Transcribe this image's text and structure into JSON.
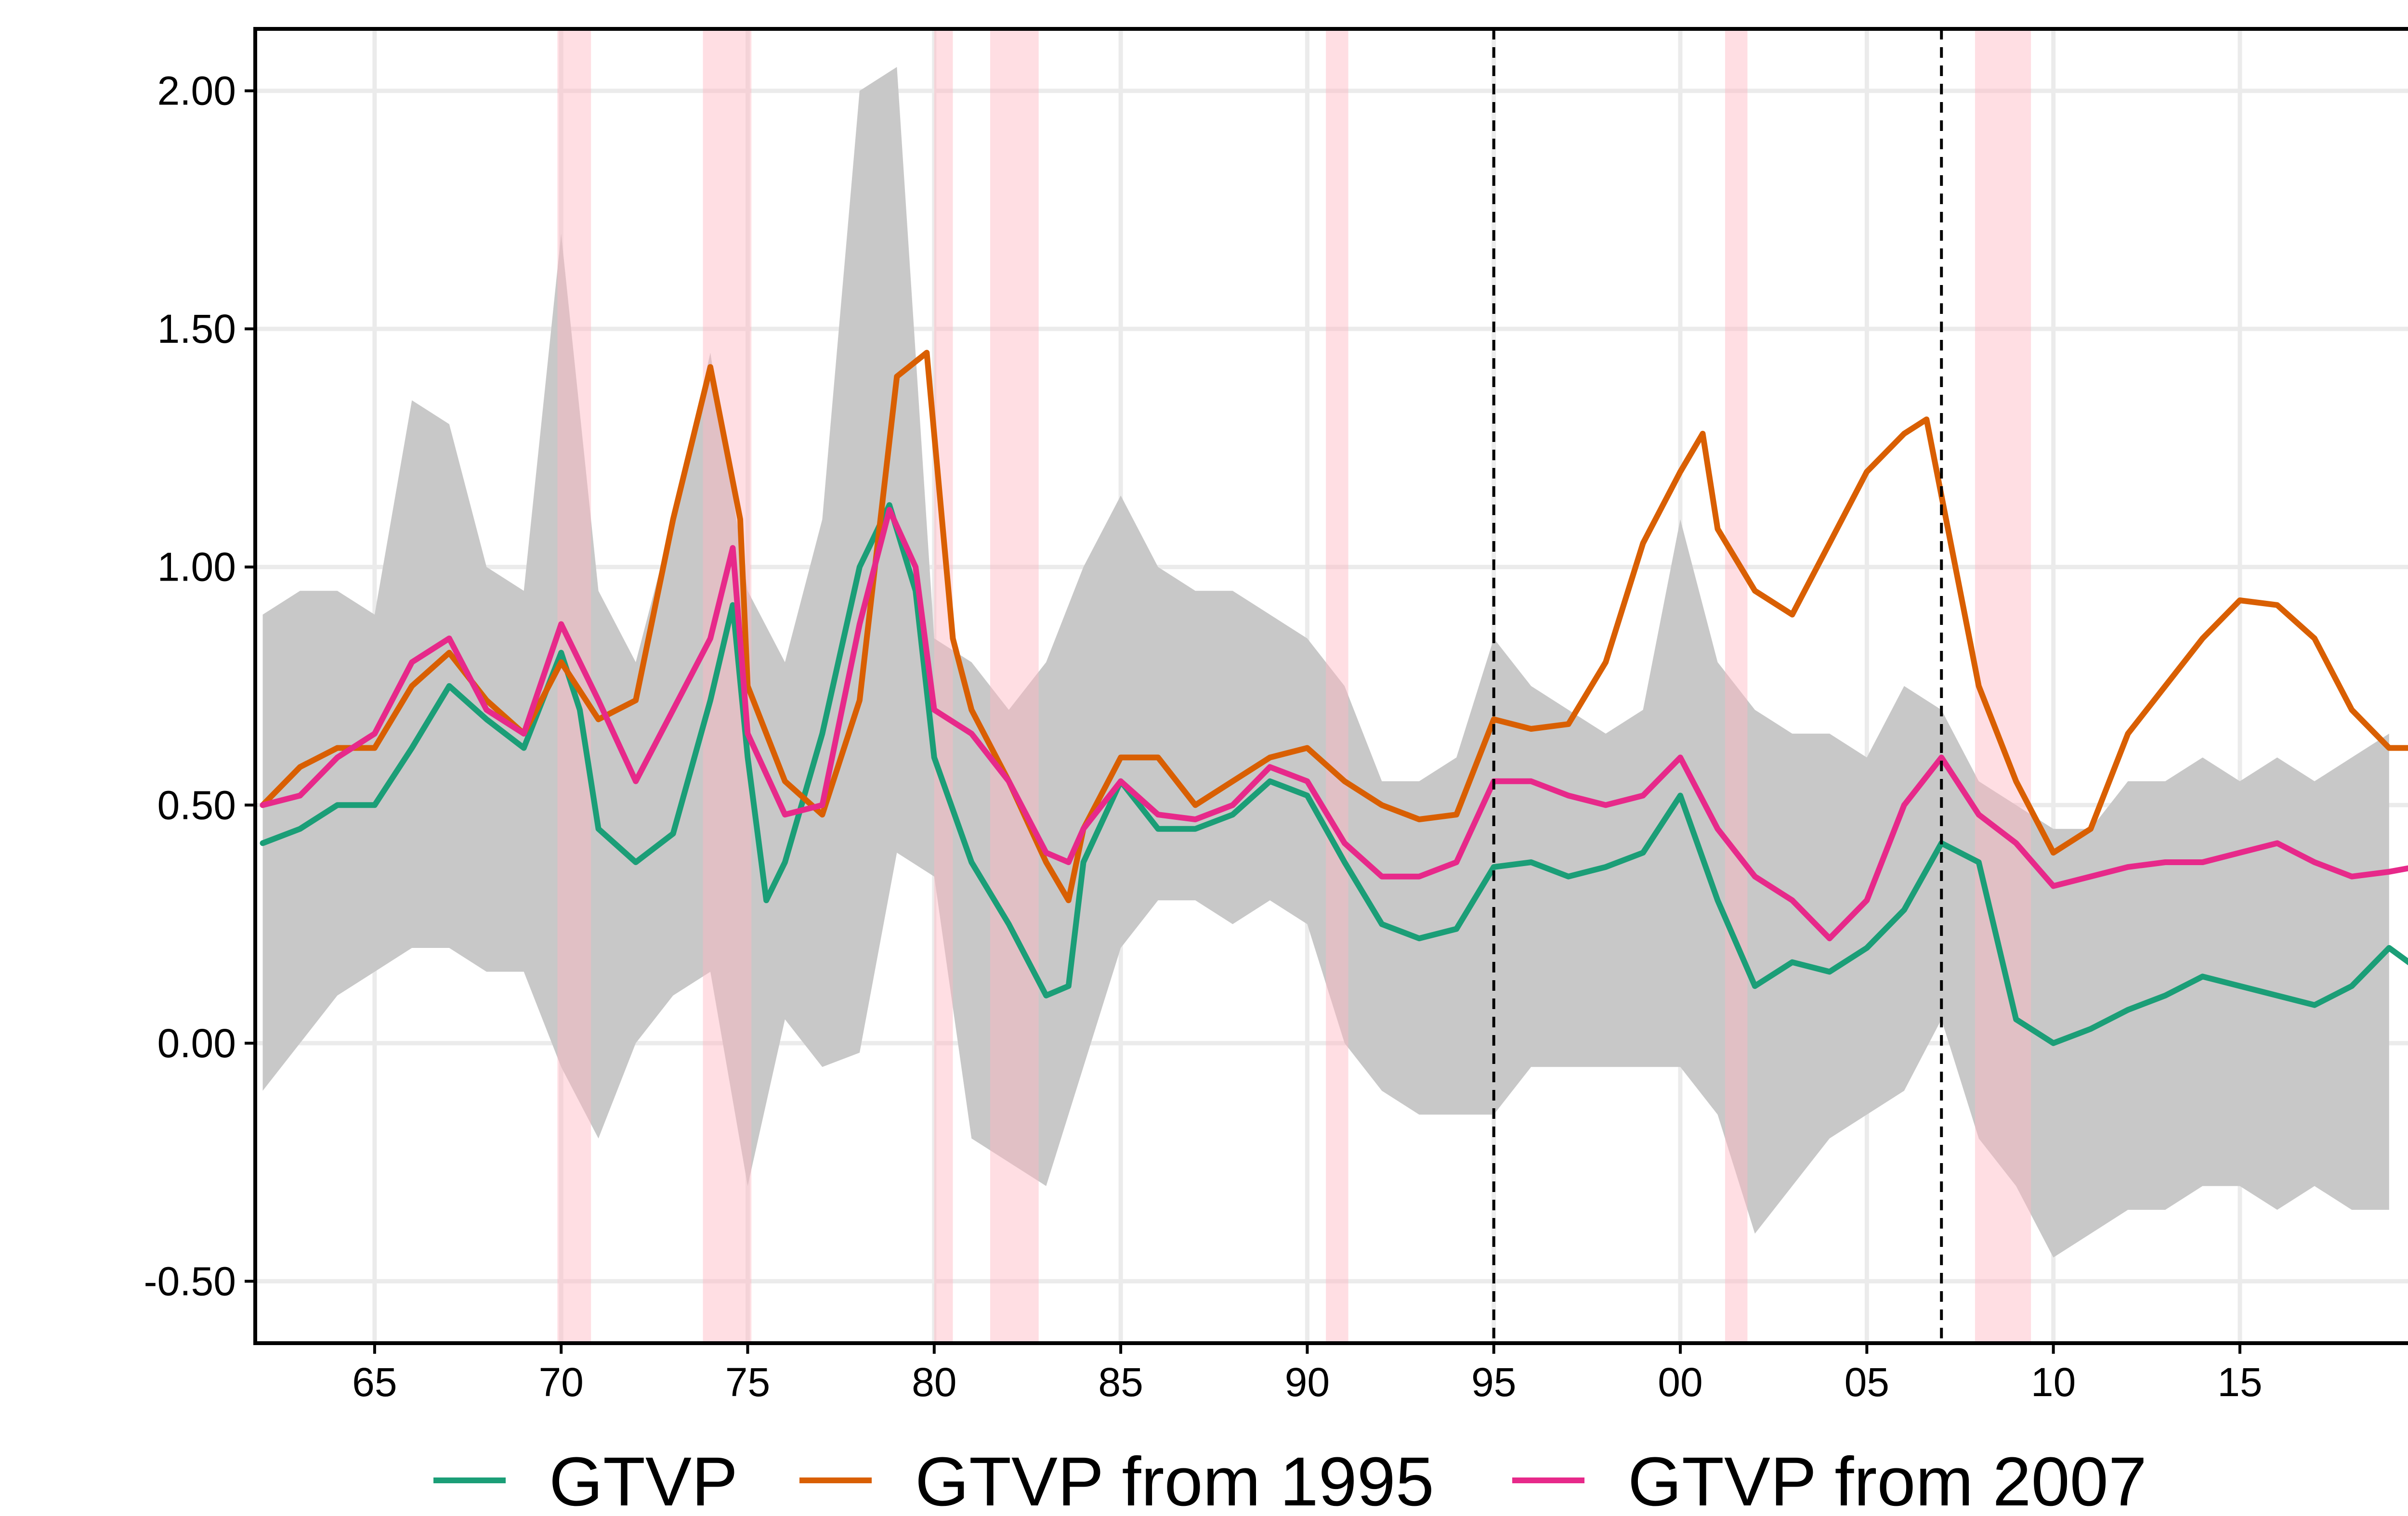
{
  "chart_data": {
    "type": "line",
    "title": "",
    "xlabel": "",
    "ylabel": "",
    "x_domain": [
      1961.8,
      2019.7
    ],
    "ylim": [
      -0.63,
      2.13
    ],
    "x_ticks": [
      1965,
      1970,
      1975,
      1980,
      1985,
      1990,
      1995,
      2000,
      2005,
      2010,
      2015
    ],
    "x_tick_labels": [
      "65",
      "70",
      "75",
      "80",
      "85",
      "90",
      "95",
      "00",
      "05",
      "10",
      "15"
    ],
    "y_ticks": [
      -0.5,
      0,
      0.5,
      1,
      1.5,
      2
    ],
    "y_tick_labels": [
      "-0.50",
      "0.00",
      "0.50",
      "1.00",
      "1.50",
      "2.00"
    ],
    "grid": true,
    "legend_position": "bottom",
    "vertical_lines": [
      1995,
      2007
    ],
    "recession_shading": [
      [
        1969.9,
        1970.8
      ],
      [
        1973.8,
        1975.1
      ],
      [
        1980.0,
        1980.5
      ],
      [
        1981.5,
        1982.8
      ],
      [
        1990.5,
        1991.1
      ],
      [
        2001.2,
        2001.8
      ],
      [
        2007.9,
        2009.4
      ]
    ],
    "band": {
      "x": [
        1962,
        1963,
        1964,
        1965,
        1966,
        1967,
        1968,
        1969,
        1970,
        1971,
        1972,
        1973,
        1974,
        1975,
        1976,
        1977,
        1978,
        1979,
        1980,
        1981,
        1982,
        1983,
        1984,
        1985,
        1986,
        1987,
        1988,
        1989,
        1990,
        1991,
        1992,
        1993,
        1994,
        1995,
        1996,
        1997,
        1998,
        1999,
        2000,
        2001,
        2002,
        2003,
        2004,
        2005,
        2006,
        2007,
        2008,
        2009,
        2010,
        2011,
        2012,
        2013,
        2014,
        2015,
        2016,
        2017,
        2018,
        2019
      ],
      "upper": [
        0.9,
        0.95,
        0.95,
        0.9,
        1.35,
        1.3,
        1.0,
        0.95,
        1.7,
        0.95,
        0.8,
        1.1,
        1.45,
        0.95,
        0.8,
        1.1,
        2.0,
        2.05,
        0.85,
        0.8,
        0.7,
        0.8,
        1.0,
        1.15,
        1.0,
        0.95,
        0.95,
        0.9,
        0.85,
        0.75,
        0.55,
        0.55,
        0.6,
        0.85,
        0.75,
        0.7,
        0.65,
        0.7,
        1.1,
        0.8,
        0.7,
        0.65,
        0.65,
        0.6,
        0.75,
        0.7,
        0.55,
        0.5,
        0.45,
        0.45,
        0.55,
        0.55,
        0.6,
        0.55,
        0.6,
        0.55,
        0.6,
        0.65
      ],
      "lower": [
        -0.1,
        0.0,
        0.1,
        0.15,
        0.2,
        0.2,
        0.15,
        0.15,
        -0.05,
        -0.2,
        0.0,
        0.1,
        0.15,
        -0.3,
        0.05,
        -0.05,
        -0.02,
        0.4,
        0.35,
        -0.2,
        -0.25,
        -0.3,
        -0.05,
        0.2,
        0.3,
        0.3,
        0.25,
        0.3,
        0.25,
        0.0,
        -0.1,
        -0.15,
        -0.15,
        -0.15,
        -0.05,
        -0.05,
        -0.05,
        -0.05,
        -0.05,
        -0.15,
        -0.4,
        -0.3,
        -0.2,
        -0.15,
        -0.1,
        0.05,
        -0.2,
        -0.3,
        -0.45,
        -0.4,
        -0.35,
        -0.35,
        -0.3,
        -0.3,
        -0.35,
        -0.3,
        -0.35,
        -0.35
      ]
    },
    "series": [
      {
        "name": "GTVP",
        "color": "#1b9e77",
        "x": [
          1962,
          1963,
          1964,
          1965,
          1966,
          1967,
          1968,
          1969,
          1970,
          1970.5,
          1971,
          1972,
          1973,
          1974,
          1974.6,
          1975,
          1975.5,
          1976,
          1977,
          1978,
          1978.8,
          1979.5,
          1980,
          1981,
          1982,
          1983,
          1983.6,
          1984,
          1985,
          1986,
          1987,
          1988,
          1989,
          1990,
          1991,
          1992,
          1993,
          1994,
          1995,
          1996,
          1997,
          1998,
          1999,
          2000,
          2001,
          2002,
          2003,
          2004,
          2005,
          2006,
          2007,
          2008,
          2009,
          2010,
          2011,
          2012,
          2013,
          2014,
          2015,
          2016,
          2017,
          2018,
          2019,
          2019.7
        ],
        "y": [
          0.42,
          0.45,
          0.5,
          0.5,
          0.62,
          0.75,
          0.68,
          0.62,
          0.82,
          0.7,
          0.45,
          0.38,
          0.44,
          0.72,
          0.92,
          0.6,
          0.3,
          0.38,
          0.65,
          1.0,
          1.13,
          0.95,
          0.6,
          0.38,
          0.25,
          0.1,
          0.12,
          0.38,
          0.55,
          0.45,
          0.45,
          0.48,
          0.55,
          0.52,
          0.38,
          0.25,
          0.22,
          0.24,
          0.37,
          0.38,
          0.35,
          0.37,
          0.4,
          0.52,
          0.3,
          0.12,
          0.17,
          0.15,
          0.2,
          0.28,
          0.42,
          0.38,
          0.05,
          0.0,
          0.03,
          0.07,
          0.1,
          0.14,
          0.12,
          0.1,
          0.08,
          0.12,
          0.2,
          0.16
        ]
      },
      {
        "name": "GTVP from 1995",
        "color": "#d95f02",
        "x": [
          1962,
          1963,
          1964,
          1965,
          1966,
          1967,
          1968,
          1969,
          1970,
          1971,
          1972,
          1973,
          1974,
          1974.8,
          1975,
          1976,
          1977,
          1978,
          1979,
          1979.8,
          1980.5,
          1981,
          1982,
          1983,
          1983.6,
          1984,
          1985,
          1986,
          1987,
          1988,
          1989,
          1990,
          1991,
          1992,
          1993,
          1994,
          1995,
          1996,
          1997,
          1998,
          1999,
          2000,
          2000.6,
          2001,
          2002,
          2003,
          2004,
          2005,
          2006,
          2006.6,
          2007,
          2008,
          2009,
          2010,
          2011,
          2012,
          2013,
          2014,
          2015,
          2016,
          2017,
          2018,
          2019,
          2019.7
        ],
        "y": [
          0.5,
          0.58,
          0.62,
          0.62,
          0.75,
          0.82,
          0.72,
          0.65,
          0.8,
          0.68,
          0.72,
          1.1,
          1.42,
          1.1,
          0.75,
          0.55,
          0.48,
          0.72,
          1.4,
          1.45,
          0.85,
          0.7,
          0.55,
          0.38,
          0.3,
          0.45,
          0.6,
          0.6,
          0.5,
          0.55,
          0.6,
          0.62,
          0.55,
          0.5,
          0.47,
          0.48,
          0.68,
          0.66,
          0.67,
          0.8,
          1.05,
          1.2,
          1.28,
          1.08,
          0.95,
          0.9,
          1.05,
          1.2,
          1.28,
          1.31,
          1.15,
          0.75,
          0.55,
          0.4,
          0.45,
          0.65,
          0.75,
          0.85,
          0.93,
          0.92,
          0.85,
          0.7,
          0.62,
          0.62
        ]
      },
      {
        "name": "GTVP from 2007",
        "color": "#e7298a",
        "x": [
          1962,
          1963,
          1964,
          1965,
          1966,
          1967,
          1968,
          1969,
          1970,
          1971,
          1972,
          1973,
          1974,
          1974.6,
          1975,
          1976,
          1977,
          1978,
          1978.8,
          1979.5,
          1980,
          1981,
          1982,
          1983,
          1983.6,
          1984,
          1985,
          1986,
          1987,
          1988,
          1989,
          1990,
          1991,
          1992,
          1993,
          1994,
          1995,
          1996,
          1997,
          1998,
          1999,
          2000,
          2001,
          2002,
          2003,
          2004,
          2005,
          2006,
          2007,
          2008,
          2009,
          2010,
          2011,
          2012,
          2013,
          2014,
          2015,
          2016,
          2017,
          2018,
          2019,
          2019.7
        ],
        "y": [
          0.5,
          0.52,
          0.6,
          0.65,
          0.8,
          0.85,
          0.7,
          0.65,
          0.88,
          0.72,
          0.55,
          0.7,
          0.85,
          1.04,
          0.65,
          0.48,
          0.5,
          0.88,
          1.12,
          1.0,
          0.7,
          0.65,
          0.55,
          0.4,
          0.38,
          0.45,
          0.55,
          0.48,
          0.47,
          0.5,
          0.58,
          0.55,
          0.42,
          0.35,
          0.35,
          0.38,
          0.55,
          0.55,
          0.52,
          0.5,
          0.52,
          0.6,
          0.45,
          0.35,
          0.3,
          0.22,
          0.3,
          0.5,
          0.6,
          0.48,
          0.42,
          0.33,
          0.35,
          0.37,
          0.38,
          0.38,
          0.4,
          0.42,
          0.38,
          0.35,
          0.36,
          0.37
        ]
      }
    ]
  }
}
